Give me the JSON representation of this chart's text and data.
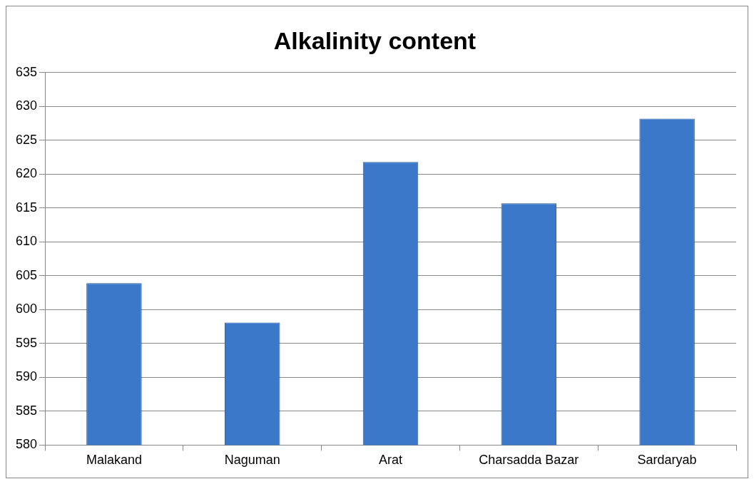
{
  "chart_data": {
    "type": "bar",
    "title": "Alkalinity content",
    "categories": [
      "Malakand",
      "Naguman",
      "Arat",
      "Charsadda Bazar",
      "Sardaryab"
    ],
    "values": [
      603.9,
      598.1,
      621.8,
      615.7,
      628.2
    ],
    "color": "#3b78c9",
    "ylim": [
      580,
      635
    ],
    "yticks": [
      580,
      585,
      590,
      595,
      600,
      605,
      610,
      615,
      620,
      625,
      630,
      635
    ],
    "grid": "y",
    "legend": false
  }
}
